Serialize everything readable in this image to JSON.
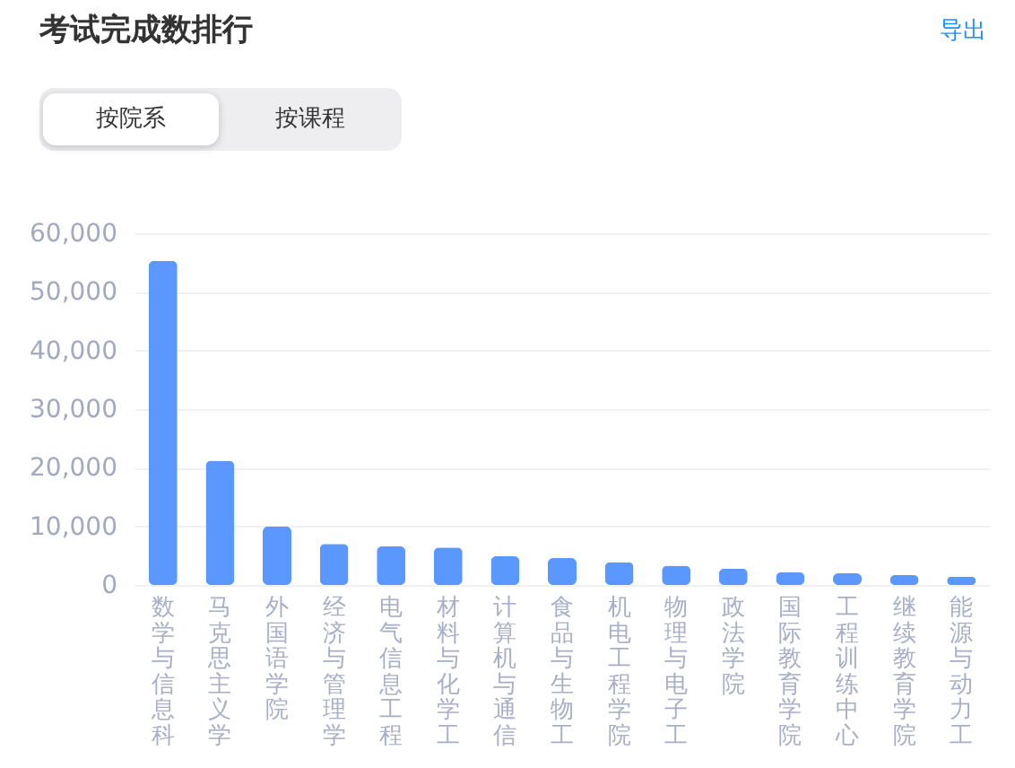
{
  "chart_data": {
    "type": "bar",
    "title": "考试完成数排行",
    "annotations": [
      "导出",
      "按院系",
      "按课程"
    ],
    "categories": [
      "数学与信息科",
      "马克思主义学",
      "外国语学院",
      "经济与管理学",
      "电气信息工程",
      "材料与化学工",
      "计算机与通信",
      "食品与生物工",
      "机电工程学院",
      "物理与电子工",
      "政法学院",
      "国际教育学院",
      "工程训练中心",
      "继续教育学院",
      "能源与动力工"
    ],
    "values": [
      55300,
      21200,
      10000,
      7000,
      6600,
      6400,
      4900,
      4600,
      3900,
      3300,
      2800,
      2200,
      2000,
      1700,
      1400
    ],
    "color": "#5a97ff",
    "ylim": [
      0,
      60000
    ],
    "yticks": [
      0,
      {
        "value": 10000,
        "label": "10,000"
      },
      {
        "value": 20000,
        "label": "20,000"
      },
      {
        "value": 30000,
        "label": "30,000"
      },
      {
        "value": 40000,
        "label": "40,000"
      },
      {
        "value": 50000,
        "label": "50,000"
      },
      {
        "value": 60000,
        "label": "60,000"
      }
    ],
    "grid": true
  }
}
